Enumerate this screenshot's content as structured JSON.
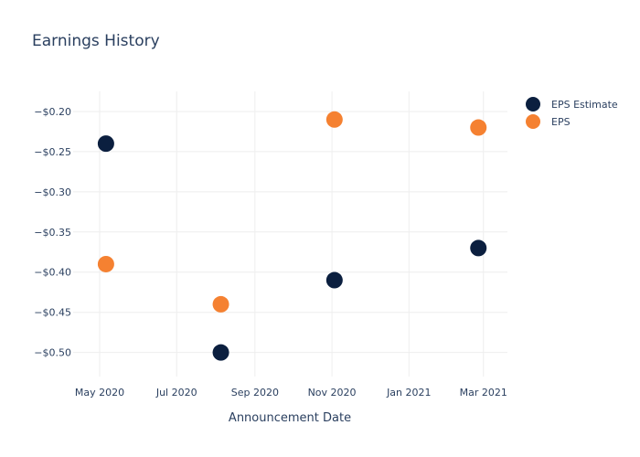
{
  "chart_data": {
    "type": "scatter",
    "title": "Earnings History",
    "xlabel": "Announcement Date",
    "ylabel": "",
    "x_ticks": [
      "May 2020",
      "Jul 2020",
      "Sep 2020",
      "Nov 2020",
      "Jan 2021",
      "Mar 2021"
    ],
    "x_tick_dates": [
      "2020-05-01",
      "2020-07-01",
      "2020-09-01",
      "2020-11-01",
      "2021-01-01",
      "2021-03-01"
    ],
    "x_range": [
      "2020-04-10",
      "2021-03-20"
    ],
    "y_ticks": [
      "−$0.20",
      "−$0.25",
      "−$0.30",
      "−$0.35",
      "−$0.40",
      "−$0.45",
      "−$0.50"
    ],
    "y_tick_values": [
      -0.2,
      -0.25,
      -0.3,
      -0.35,
      -0.4,
      -0.45,
      -0.5
    ],
    "ylim": [
      -0.53,
      -0.175
    ],
    "grid": true,
    "legend_position": "top-right",
    "series": [
      {
        "name": "EPS Estimate",
        "color": "#0b1f3f",
        "points": [
          {
            "x": "2020-05-06",
            "y": -0.24
          },
          {
            "x": "2020-08-05",
            "y": -0.5
          },
          {
            "x": "2020-11-03",
            "y": -0.41
          },
          {
            "x": "2021-02-25",
            "y": -0.37
          }
        ]
      },
      {
        "name": "EPS",
        "color": "#f58131",
        "points": [
          {
            "x": "2020-05-06",
            "y": -0.39
          },
          {
            "x": "2020-08-05",
            "y": -0.44
          },
          {
            "x": "2020-11-03",
            "y": -0.21
          },
          {
            "x": "2021-02-25",
            "y": -0.22
          }
        ]
      }
    ]
  }
}
